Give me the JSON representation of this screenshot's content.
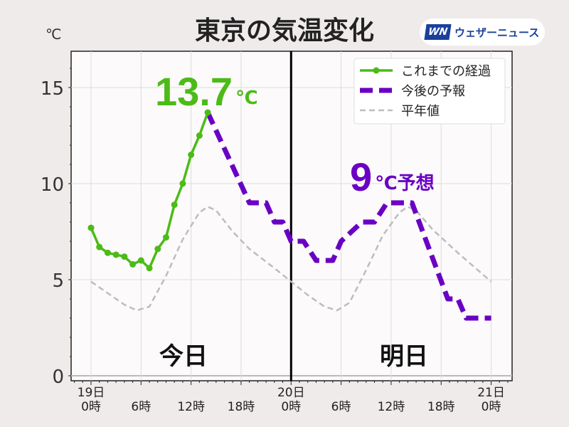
{
  "header": {
    "title": "東京の気温変化",
    "unit": "℃",
    "logo_mark": "WN",
    "logo_text": "ウェザーニュース"
  },
  "annotations": {
    "max_today": "13.7",
    "max_today_unit": "℃",
    "tomorrow": "9",
    "tomorrow_unit": "℃予想",
    "today_label": "今日",
    "tomorrow_label": "明日"
  },
  "chart_data": {
    "type": "line",
    "title": "東京の気温変化",
    "ylabel": "℃",
    "ylim": [
      0,
      17
    ],
    "xlim": [
      -2,
      50
    ],
    "yticks": [
      0,
      5,
      10,
      15
    ],
    "xticks": [
      {
        "h": 0,
        "label": "19日\n0時"
      },
      {
        "h": 6,
        "label": "6時"
      },
      {
        "h": 12,
        "label": "12時"
      },
      {
        "h": 18,
        "label": "18時"
      },
      {
        "h": 24,
        "label": "20日\n0時"
      },
      {
        "h": 30,
        "label": "6時"
      },
      {
        "h": 36,
        "label": "12時"
      },
      {
        "h": 42,
        "label": "18時"
      },
      {
        "h": 48,
        "label": "21日\n0時"
      }
    ],
    "legend": {
      "placement": "top-right",
      "entries": [
        "これまでの経過",
        "今後の予報",
        "平年値"
      ]
    },
    "grid": true,
    "series": [
      {
        "name": "これまでの経過",
        "color": "#4cbb17",
        "points": [
          [
            0,
            7.7
          ],
          [
            1,
            6.7
          ],
          [
            2,
            6.4
          ],
          [
            3,
            6.3
          ],
          [
            4,
            6.2
          ],
          [
            5,
            5.8
          ],
          [
            6,
            6.0
          ],
          [
            7,
            5.6
          ],
          [
            8,
            6.6
          ],
          [
            9,
            7.2
          ],
          [
            10,
            8.9
          ],
          [
            11,
            10.0
          ],
          [
            12,
            11.5
          ],
          [
            13,
            12.5
          ],
          [
            14,
            13.7
          ]
        ]
      },
      {
        "name": "今後の予報",
        "color": "#6a00c4",
        "points": [
          [
            14,
            13.7
          ],
          [
            19,
            9
          ],
          [
            21,
            9
          ],
          [
            22,
            8
          ],
          [
            23,
            8
          ],
          [
            24,
            7
          ],
          [
            25.5,
            7
          ],
          [
            27,
            6
          ],
          [
            29,
            6
          ],
          [
            30,
            7
          ],
          [
            32.5,
            8
          ],
          [
            34,
            8
          ],
          [
            35.5,
            9
          ],
          [
            38.5,
            9
          ],
          [
            42.8,
            4
          ],
          [
            44,
            4
          ],
          [
            45,
            3
          ],
          [
            48,
            3
          ]
        ]
      },
      {
        "name": "平年値",
        "color": "#bdbdbd",
        "points": [
          [
            0,
            4.9
          ],
          [
            2,
            4.3
          ],
          [
            4,
            3.7
          ],
          [
            5.5,
            3.4
          ],
          [
            7,
            3.6
          ],
          [
            9,
            5.2
          ],
          [
            11,
            7.1
          ],
          [
            13,
            8.5
          ],
          [
            14,
            8.8
          ],
          [
            15,
            8.6
          ],
          [
            17,
            7.5
          ],
          [
            19,
            6.6
          ],
          [
            22,
            5.6
          ],
          [
            24,
            4.9
          ],
          [
            26,
            4.2
          ],
          [
            28,
            3.6
          ],
          [
            29.5,
            3.4
          ],
          [
            31,
            3.8
          ],
          [
            33,
            5.5
          ],
          [
            35,
            7.3
          ],
          [
            37,
            8.5
          ],
          [
            38,
            8.8
          ],
          [
            39,
            8.6
          ],
          [
            41,
            7.6
          ],
          [
            44,
            6.4
          ],
          [
            48,
            4.9
          ]
        ]
      }
    ]
  }
}
